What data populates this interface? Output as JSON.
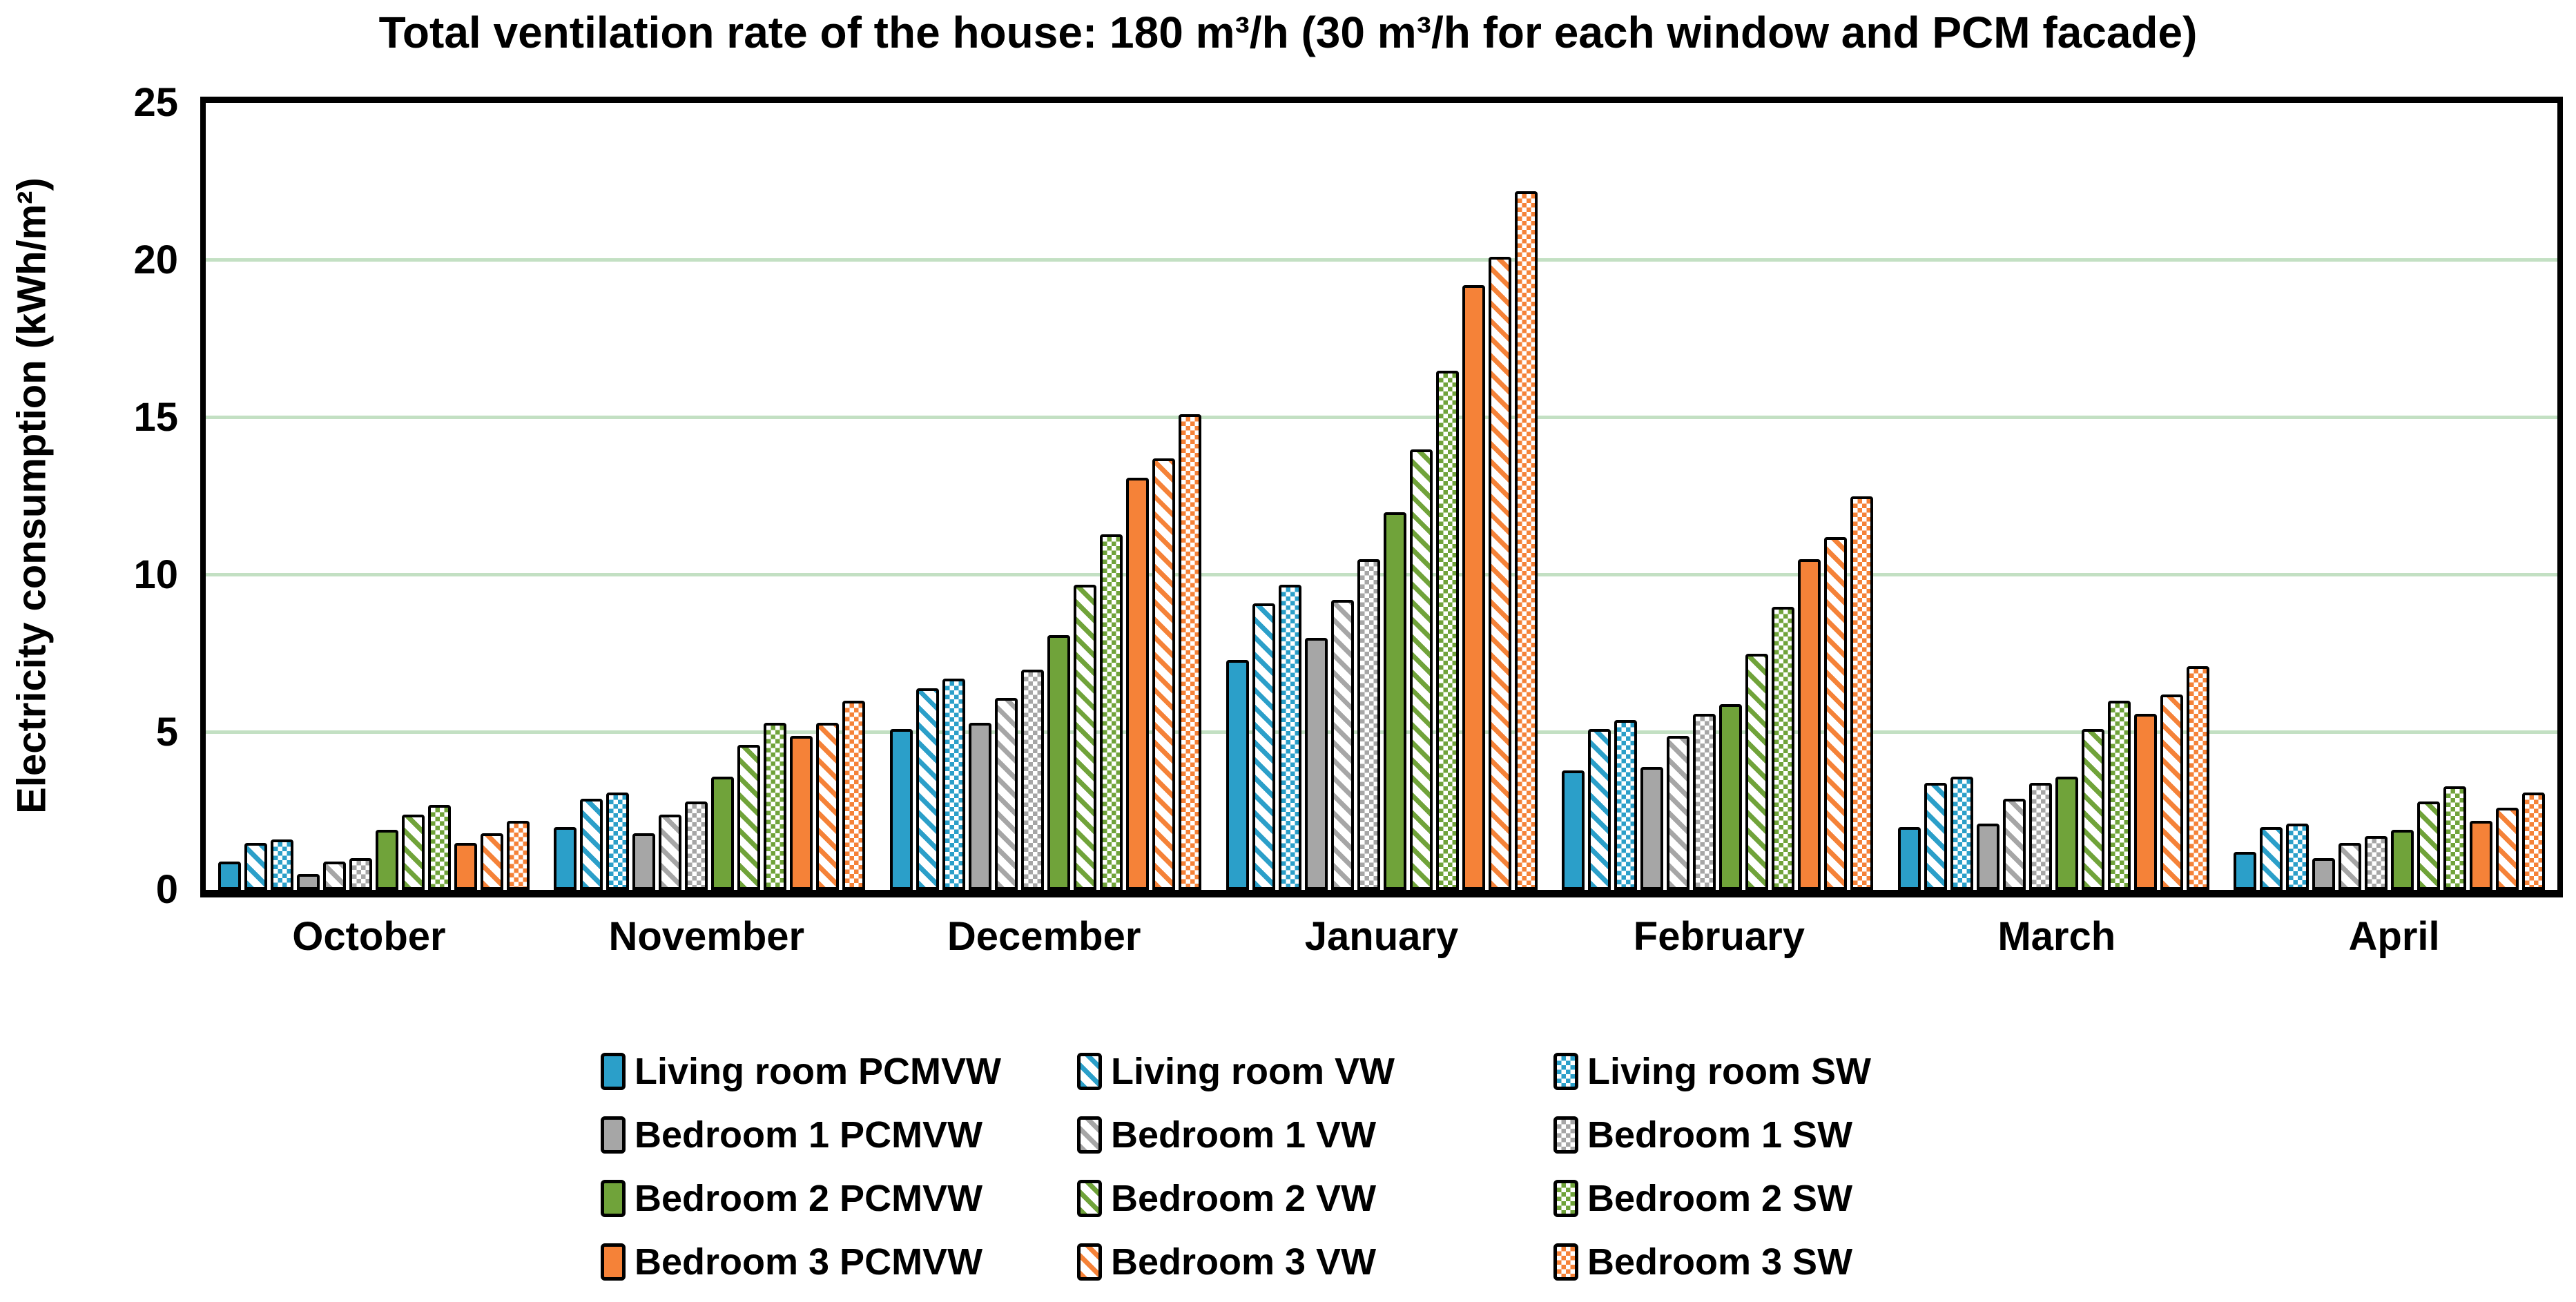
{
  "chart_data": {
    "type": "bar",
    "title": "Total ventilation rate of the house: 180 m³/h (30 m³/h for each window and PCM facade)",
    "ylabel": "Electricity consumption (kWh/m²)",
    "xlabel": "",
    "ylim": [
      0,
      25
    ],
    "ytick_step": 5,
    "yticks": [
      "0",
      "5",
      "10",
      "15",
      "20",
      "25"
    ],
    "grid": true,
    "gridline_values": [
      5,
      10,
      15,
      20
    ],
    "legend_position": "bottom",
    "categories": [
      "October",
      "November",
      "December",
      "January",
      "February",
      "March",
      "April"
    ],
    "series": [
      {
        "name": "Living room PCMVW",
        "color": "#2B9FC9",
        "pattern": "solid",
        "values": [
          0.9,
          2.0,
          5.1,
          7.3,
          3.8,
          2.0,
          1.2
        ]
      },
      {
        "name": "Living room VW",
        "color": "#2B9FC9",
        "pattern": "diagonal-hatch",
        "values": [
          1.5,
          2.9,
          6.4,
          9.1,
          5.1,
          3.4,
          2.0
        ]
      },
      {
        "name": "Living room SW",
        "color": "#2B9FC9",
        "pattern": "checker",
        "values": [
          1.6,
          3.1,
          6.7,
          9.7,
          5.4,
          3.6,
          2.1
        ]
      },
      {
        "name": "Bedroom 1 PCMVW",
        "color": "#A6A6A6",
        "pattern": "solid",
        "values": [
          0.5,
          1.8,
          5.3,
          8.0,
          3.9,
          2.1,
          1.0
        ]
      },
      {
        "name": "Bedroom 1 VW",
        "color": "#A6A6A6",
        "pattern": "diagonal-hatch",
        "values": [
          0.9,
          2.4,
          6.1,
          9.2,
          4.9,
          2.9,
          1.5
        ]
      },
      {
        "name": "Bedroom 1 SW",
        "color": "#A6A6A6",
        "pattern": "checker",
        "values": [
          1.0,
          2.8,
          7.0,
          10.5,
          5.6,
          3.4,
          1.7
        ]
      },
      {
        "name": "Bedroom 2 PCMVW",
        "color": "#70A33A",
        "pattern": "solid",
        "values": [
          1.9,
          3.6,
          8.1,
          12.0,
          5.9,
          3.6,
          1.9
        ]
      },
      {
        "name": "Bedroom 2 VW",
        "color": "#70A33A",
        "pattern": "diagonal-hatch",
        "values": [
          2.4,
          4.6,
          9.7,
          14.0,
          7.5,
          5.1,
          2.8
        ]
      },
      {
        "name": "Bedroom 2 SW",
        "color": "#70A33A",
        "pattern": "checker",
        "values": [
          2.7,
          5.3,
          11.3,
          16.5,
          9.0,
          6.0,
          3.3
        ]
      },
      {
        "name": "Bedroom 3 PCMVW",
        "color": "#F58238",
        "pattern": "solid",
        "values": [
          1.5,
          4.9,
          13.1,
          19.2,
          10.5,
          5.6,
          2.2
        ]
      },
      {
        "name": "Bedroom 3 VW",
        "color": "#F58238",
        "pattern": "diagonal-hatch",
        "values": [
          1.8,
          5.3,
          13.7,
          20.1,
          11.2,
          6.2,
          2.6
        ]
      },
      {
        "name": "Bedroom 3 SW",
        "color": "#F58238",
        "pattern": "checker",
        "values": [
          2.2,
          6.0,
          15.1,
          22.2,
          12.5,
          7.1,
          3.1
        ]
      }
    ],
    "colors": {
      "gridline": "#C3E0C3",
      "axis": "#000000",
      "background": "#FFFFFF",
      "pattern_background": "#FFFFFF"
    }
  }
}
